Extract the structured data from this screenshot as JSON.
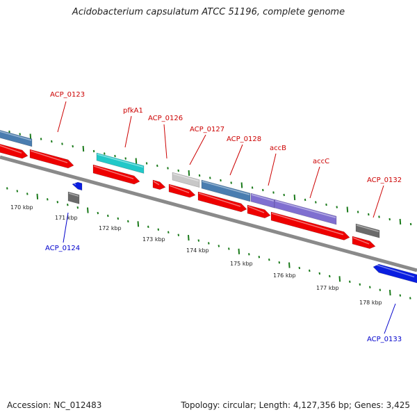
{
  "title": "Acidobacterium capsulatum ATCC 51196, complete genome",
  "footer": {
    "accession": "Accession: NC_012483",
    "summary": "Topology: circular; Length: 4,127,356 bp; Genes: 3,425"
  },
  "colors": {
    "forward_label": "#cc0000",
    "reverse_label": "#0000cc",
    "cds_red": "#ee0000",
    "steel_blue": "#4a7db0",
    "cyan": "#22c8c8",
    "light_gray": "#c8c8c8",
    "dark_gray": "#6a6a6a",
    "violet": "#7f6fd0",
    "blue": "#0a1ee0",
    "backbone": "#8a8a8a",
    "ruler_tick": "#1a7a1a"
  },
  "ruler_labels": [
    "170 kbp",
    "171 kbp",
    "172 kbp",
    "173 kbp",
    "174 kbp",
    "175 kbp",
    "176 kbp",
    "177 kbp",
    "178 kbp"
  ],
  "forward_labels": [
    "ACP_0123",
    "pfkA1",
    "ACP_0126",
    "ACP_0127",
    "ACP_0128",
    "accB",
    "accC",
    "ACP_0132"
  ],
  "reverse_labels": [
    "ACP_0124",
    "ACP_0133"
  ]
}
